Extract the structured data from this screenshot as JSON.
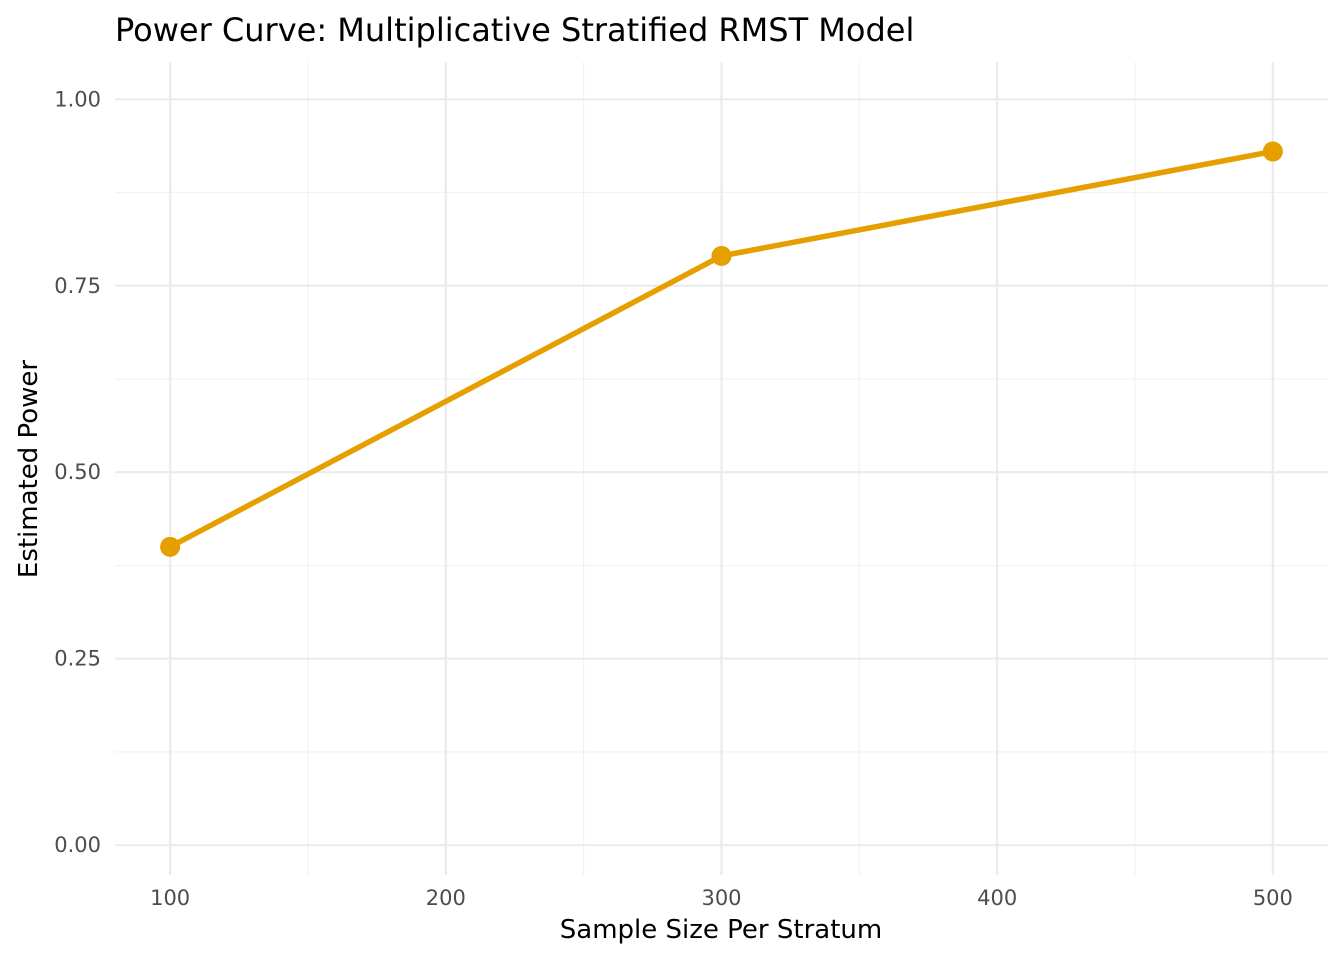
{
  "chart_data": {
    "type": "line",
    "title": "Power Curve: Multiplicative Stratified RMST Model",
    "xlabel": "Sample Size Per Stratum",
    "ylabel": "Estimated Power",
    "x": [
      100,
      300,
      500
    ],
    "series": [
      {
        "values": [
          0.4,
          0.79,
          0.93
        ]
      }
    ],
    "xlim": [
      80,
      520
    ],
    "ylim": [
      -0.04,
      1.05
    ],
    "x_ticks": [
      100,
      200,
      300,
      400,
      500
    ],
    "x_tick_labels": [
      "100",
      "200",
      "300",
      "400",
      "500"
    ],
    "y_ticks": [
      0,
      0.25,
      0.5,
      0.75,
      1
    ],
    "y_tick_labels": [
      "0.00",
      "0.25",
      "0.50",
      "0.75",
      "1.00"
    ],
    "grid": true,
    "legend": "none",
    "line_color": "#E69F00"
  }
}
